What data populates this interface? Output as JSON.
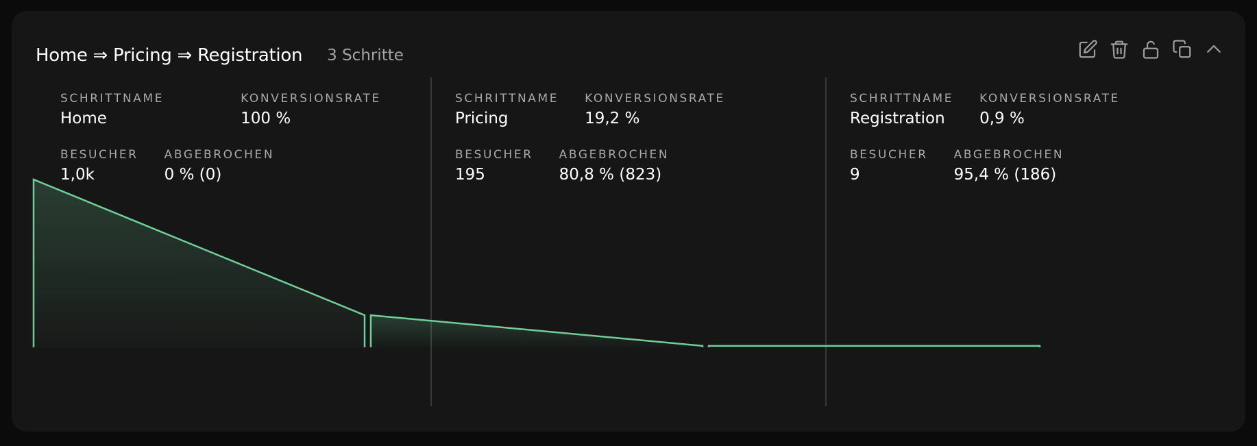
{
  "header": {
    "title": "Home ⇒ Pricing ⇒ Registration",
    "steps_count": "3 Schritte"
  },
  "actions": [
    {
      "name": "edit-icon"
    },
    {
      "name": "trash-icon"
    },
    {
      "name": "unlock-icon"
    },
    {
      "name": "copy-icon"
    },
    {
      "name": "chevron-up-icon"
    }
  ],
  "labels": {
    "step_name": "SCHRITTNAME",
    "conversion_rate": "KONVERSIONSRATE",
    "visitors": "BESUCHER",
    "dropped": "ABGEBROCHEN"
  },
  "steps": [
    {
      "name": "Home",
      "conversion_rate": "100 %",
      "visitors": "1,0k",
      "dropped": "0 % (0)"
    },
    {
      "name": "Pricing",
      "conversion_rate": "19,2 %",
      "visitors": "195",
      "dropped": "80,8 % (823)"
    },
    {
      "name": "Registration",
      "conversion_rate": "0,9 %",
      "visitors": "9",
      "dropped": "95,4 % (186)"
    }
  ],
  "chart_data": {
    "type": "area",
    "categories": [
      "Home",
      "Pricing",
      "Registration"
    ],
    "values": [
      1018,
      195,
      9
    ],
    "ylim": [
      0,
      1018
    ],
    "colors": {
      "line": "#6fcf97",
      "fill": "#6fcf97"
    },
    "grid": false
  }
}
